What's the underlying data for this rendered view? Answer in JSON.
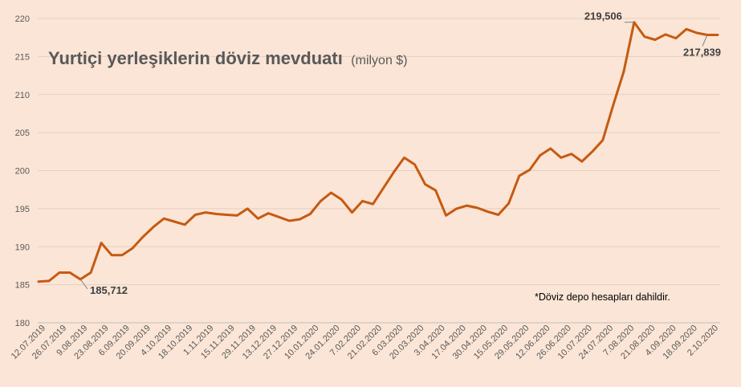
{
  "chart_data": {
    "type": "line",
    "title": "Yurtiçi yerleşiklerin döviz mevduatı",
    "subtitle": "(milyon $)",
    "note": "*Döviz depo hesapları dahildir.",
    "ylim": [
      180,
      220
    ],
    "yticks": [
      180,
      185,
      190,
      195,
      200,
      205,
      210,
      215,
      220
    ],
    "grid": true,
    "legend": "none",
    "color": "#c55a11",
    "x_labels": [
      "12.07.2019",
      "26.07.2019",
      "9.08.2019",
      "23.08.2019",
      "6.09.2019",
      "20.09.2019",
      "4.10.2019",
      "18.10.2019",
      "1.11.2019",
      "15.11.2019",
      "29.11.2019",
      "13.12.2019",
      "27.12.2019",
      "10.01.2020",
      "24.01.2020",
      "7.02.2020",
      "21.02.2020",
      "6.03.2020",
      "20.03.2020",
      "3.04.2020",
      "17.04.2020",
      "30.04.2020",
      "15.05.2020",
      "29.05.2020",
      "12.06.2020",
      "26.06.2020",
      "10.07.2020",
      "24.07.2020",
      "7.08.2020",
      "21.08.2020",
      "4.09.2020",
      "18.09.2020",
      "2.10.2020"
    ],
    "values": [
      185.4,
      185.5,
      186.6,
      186.6,
      185.712,
      186.6,
      190.5,
      188.9,
      188.9,
      189.8,
      191.3,
      192.6,
      193.7,
      193.3,
      192.9,
      194.2,
      194.5,
      194.3,
      194.2,
      194.1,
      195.0,
      193.7,
      194.4,
      193.9,
      193.4,
      193.6,
      194.3,
      196.0,
      197.1,
      196.2,
      194.5,
      196.0,
      195.6,
      197.7,
      199.8,
      201.7,
      200.8,
      198.2,
      197.4,
      194.1,
      195.0,
      195.4,
      195.1,
      194.6,
      194.2,
      195.7,
      199.3,
      200.1,
      202.0,
      202.9,
      201.7,
      202.2,
      201.2,
      202.5,
      204.0,
      208.6,
      213.0,
      219.506,
      217.6,
      217.2,
      217.9,
      217.4,
      218.6,
      218.1,
      217.839,
      217.839
    ],
    "annotations": [
      {
        "index": 4,
        "label": "185,712"
      },
      {
        "index": 57,
        "label": "219,506"
      },
      {
        "index": 64,
        "label": "217,839"
      }
    ]
  }
}
